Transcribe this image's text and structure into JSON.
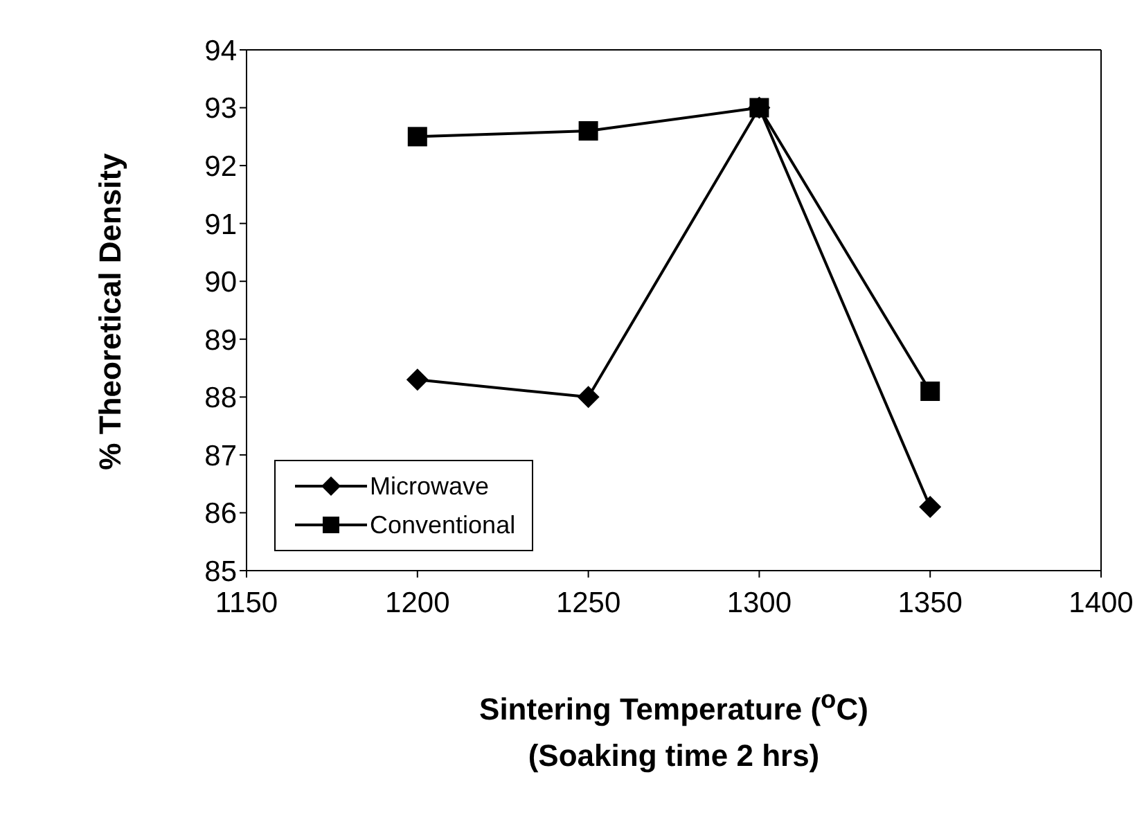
{
  "chart_data": {
    "type": "line",
    "xlabel": "Sintering Temperature ($^{o}$C)\n(Soaking time 2 hrs)",
    "ylabel": "% Theoretical Density",
    "x": [
      1200,
      1250,
      1300,
      1350
    ],
    "series": [
      {
        "name": "Microwave",
        "color": "#000000",
        "marker": "diamond",
        "values": [
          88.3,
          88.0,
          93.0,
          86.1
        ]
      },
      {
        "name": "Conventional",
        "color": "#000000",
        "marker": "square",
        "values": [
          92.5,
          92.6,
          93.0,
          88.1
        ]
      }
    ],
    "xlim": [
      1150,
      1400
    ],
    "xticks": [
      1150,
      1200,
      1250,
      1300,
      1350,
      1400
    ],
    "ylim": [
      85,
      94
    ],
    "yticks": [
      85,
      86,
      87,
      88,
      89,
      90,
      91,
      92,
      93,
      94
    ],
    "grid": false,
    "legend": "bottom left",
    "line_style": "solid"
  }
}
